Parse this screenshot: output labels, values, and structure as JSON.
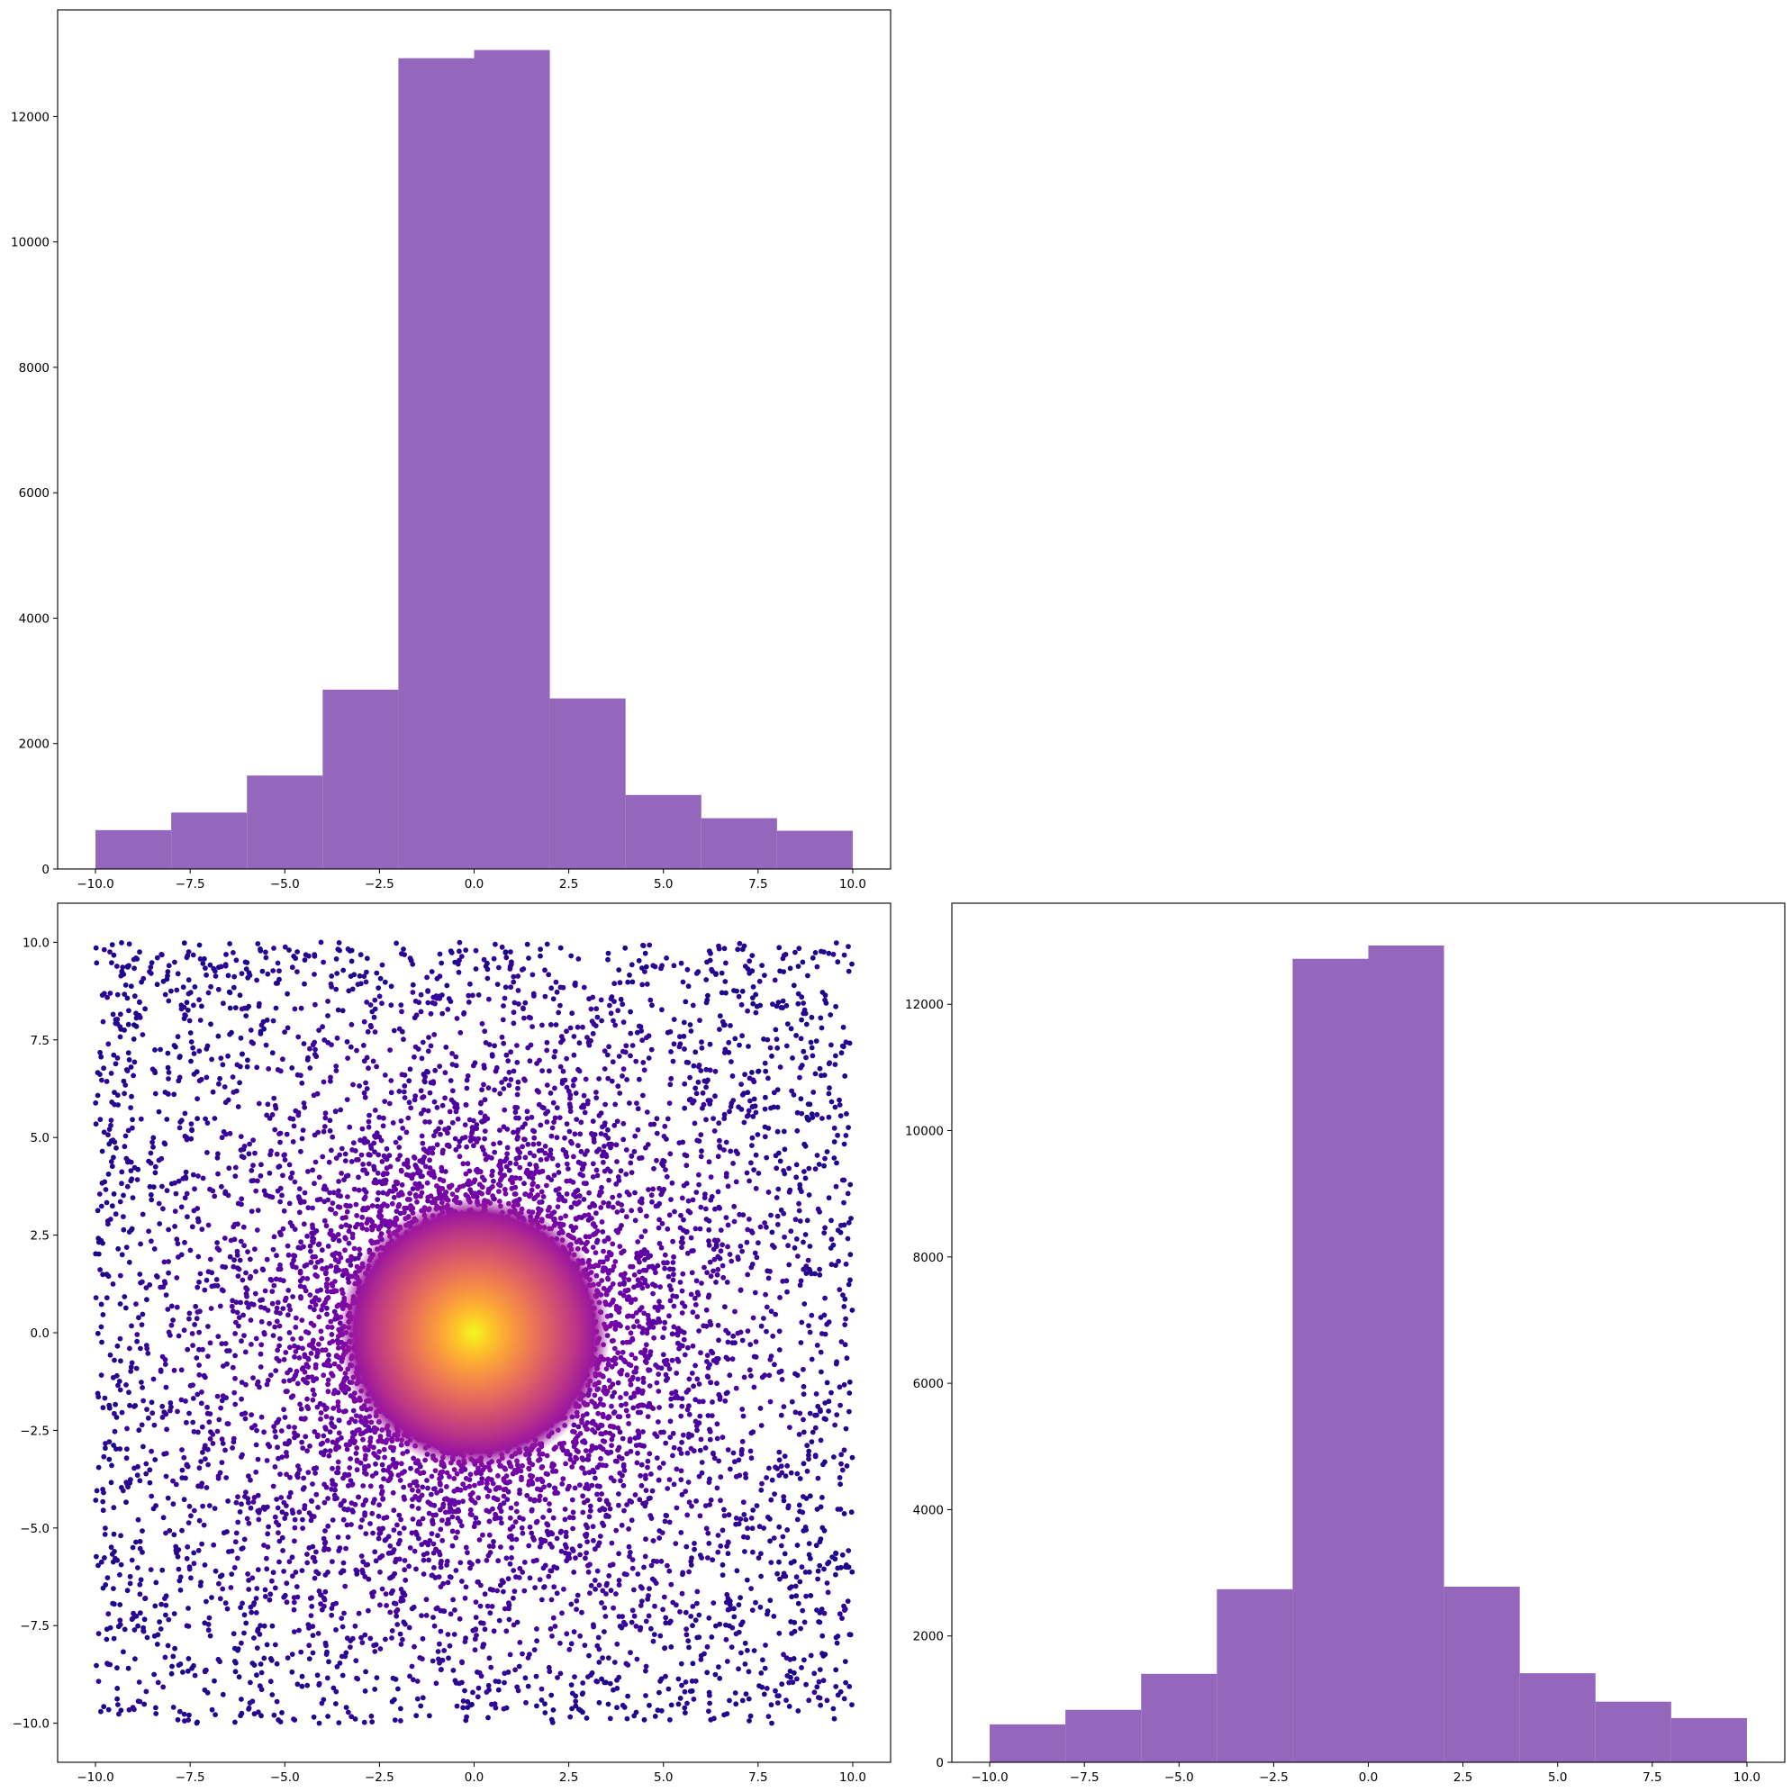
{
  "colors": {
    "bar": "#9467bd",
    "scatter_colormap": "plasma",
    "colormap_stops": [
      "#0d0887",
      "#46039f",
      "#7201a8",
      "#9c179e",
      "#bd3786",
      "#d8576b",
      "#ed7953",
      "#fb9f3a",
      "#fdca26",
      "#f0f921"
    ],
    "axes": "#000000",
    "background": "#ffffff"
  },
  "chart_data": [
    {
      "id": "hist-x",
      "type": "bar",
      "subtype": "histogram",
      "bin_edges": [
        -10,
        -8,
        -6,
        -4,
        -2,
        0,
        2,
        4,
        6,
        8,
        10
      ],
      "values": [
        620,
        900,
        1490,
        2860,
        12930,
        13060,
        2720,
        1180,
        810,
        610
      ],
      "xlim": [
        -11,
        11
      ],
      "ylim": [
        0,
        13700
      ],
      "xticks": [
        -10,
        -7.5,
        -5,
        -2.5,
        0,
        2.5,
        5,
        7.5,
        10
      ],
      "xtick_labels": [
        "−10.0",
        "−7.5",
        "−5.0",
        "−2.5",
        "0.0",
        "2.5",
        "5.0",
        "7.5",
        "10.0"
      ],
      "yticks": [
        0,
        2000,
        4000,
        6000,
        8000,
        10000,
        12000
      ],
      "ytick_labels": [
        "0",
        "2000",
        "4000",
        "6000",
        "8000",
        "10000",
        "12000"
      ],
      "grid": false
    },
    {
      "id": "scatter-xy",
      "type": "scatter",
      "description_of_points": "about 20000 points uniformly spread over the square [-10,10]x[-10,10], with a dense cluster concentrated at the origin; point color follows the plasma colormap by density (dark indigo far out, bright yellow at the center)",
      "x_range": [
        -10,
        10
      ],
      "y_range": [
        -10,
        10
      ],
      "center": [
        0,
        0
      ],
      "xlim": [
        -11,
        11
      ],
      "ylim": [
        -11,
        11
      ],
      "xticks": [
        -10,
        -7.5,
        -5,
        -2.5,
        0,
        2.5,
        5,
        7.5,
        10
      ],
      "xtick_labels": [
        "−10.0",
        "−7.5",
        "−5.0",
        "−2.5",
        "0.0",
        "2.5",
        "5.0",
        "7.5",
        "10.0"
      ],
      "yticks": [
        -10,
        -7.5,
        -5,
        -2.5,
        0,
        2.5,
        5,
        7.5,
        10
      ],
      "ytick_labels": [
        "−10.0",
        "−7.5",
        "−5.0",
        "−2.5",
        "0.0",
        "2.5",
        "5.0",
        "7.5",
        "10.0"
      ],
      "grid": false
    },
    {
      "id": "hist-y",
      "type": "bar",
      "subtype": "histogram",
      "bin_edges": [
        -10,
        -8,
        -6,
        -4,
        -2,
        0,
        2,
        4,
        6,
        8,
        10
      ],
      "values": [
        600,
        830,
        1400,
        2740,
        12720,
        12930,
        2780,
        1410,
        960,
        700
      ],
      "xlim": [
        -11,
        11
      ],
      "ylim": [
        0,
        13600
      ],
      "xticks": [
        -10,
        -7.5,
        -5,
        -2.5,
        0,
        2.5,
        5,
        7.5,
        10
      ],
      "xtick_labels": [
        "−10.0",
        "−7.5",
        "−5.0",
        "−2.5",
        "0.0",
        "2.5",
        "5.0",
        "7.5",
        "10.0"
      ],
      "yticks": [
        0,
        2000,
        4000,
        6000,
        8000,
        10000,
        12000
      ],
      "ytick_labels": [
        "0",
        "2000",
        "4000",
        "6000",
        "8000",
        "10000",
        "12000"
      ],
      "grid": false
    }
  ]
}
